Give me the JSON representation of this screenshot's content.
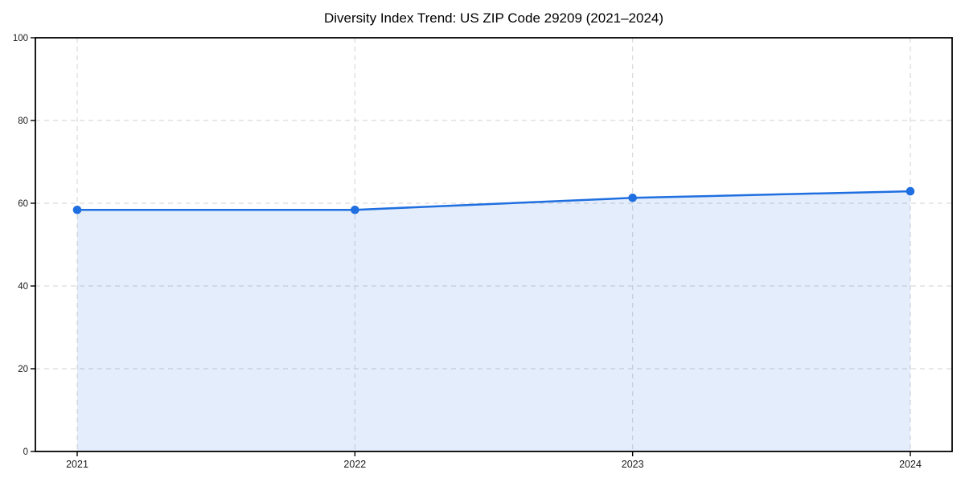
{
  "page": {
    "background": "#ffffff"
  },
  "chart_data": {
    "type": "area",
    "title": "Diversity Index Trend: US ZIP Code 29209 (2021–2024)",
    "x": [
      "2021",
      "2022",
      "2023",
      "2024"
    ],
    "series": [
      {
        "name": "Diversity Index",
        "values": [
          58.4,
          58.4,
          61.3,
          62.9
        ]
      }
    ],
    "xlabel": "",
    "ylabel": "",
    "ylim": [
      0,
      100
    ],
    "yticks": [
      0,
      20,
      40,
      60,
      80,
      100
    ],
    "grid": {
      "visible": true,
      "style": "dashed",
      "axes": "both"
    },
    "legend": "none",
    "markers": "circle",
    "colors": {
      "line": "#1f6fe0",
      "marker": "#1f6fe0",
      "fill": "rgba(31, 111, 224, 0.12)",
      "grid": "#d9d9d9",
      "axis": "#000000",
      "tick_label": "#1a1a1a",
      "title": "#000000",
      "background": "#ffffff"
    }
  }
}
